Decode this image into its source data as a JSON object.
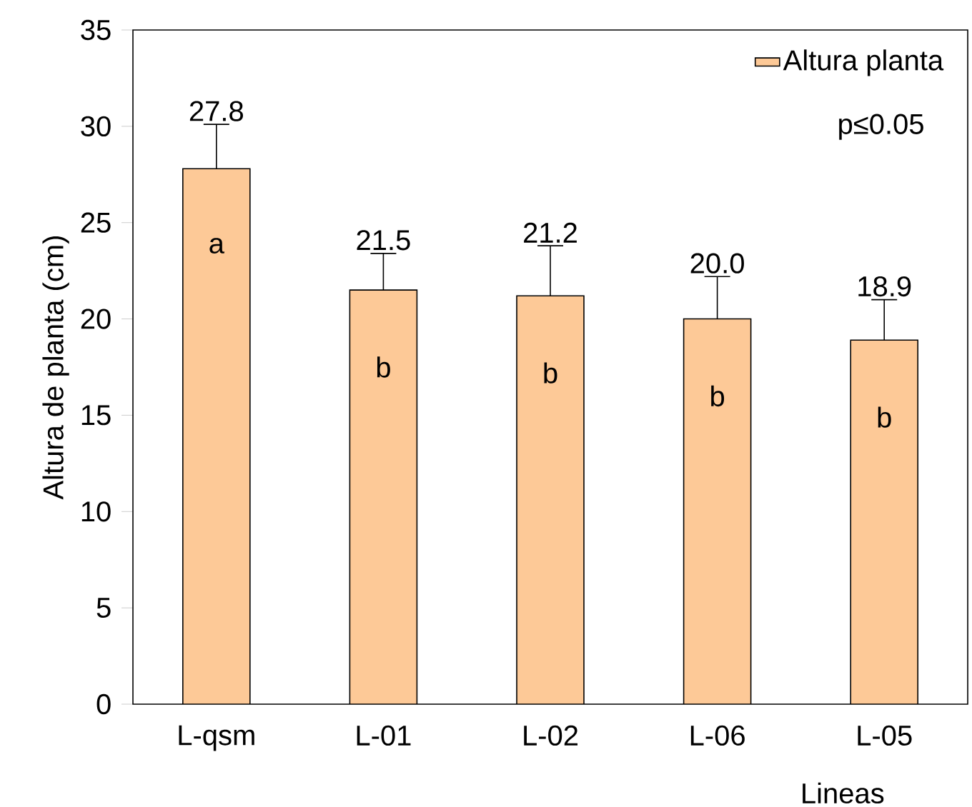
{
  "chart_data": {
    "type": "bar",
    "xlabel": "Lineas",
    "ylabel": "Altura de planta (cm)",
    "categories": [
      "L-qsm",
      "L-01",
      "L-02",
      "L-06",
      "L-05"
    ],
    "series": [
      {
        "name": "Altura planta",
        "color": "#fdc997",
        "values": [
          27.8,
          21.5,
          21.2,
          20.0,
          18.9
        ],
        "value_labels": [
          "27.8",
          "21.5",
          "21.2",
          "20.0",
          "18.9"
        ],
        "errors": [
          2.3,
          1.9,
          2.6,
          2.2,
          2.1
        ]
      }
    ],
    "ylim": [
      0,
      35
    ],
    "yticks": [
      0,
      5,
      10,
      15,
      20,
      25,
      30,
      35
    ],
    "legend": "top right",
    "grid": false,
    "annotations": [
      "a",
      "b",
      "b",
      "b",
      "b",
      "p≤0.05"
    ]
  }
}
